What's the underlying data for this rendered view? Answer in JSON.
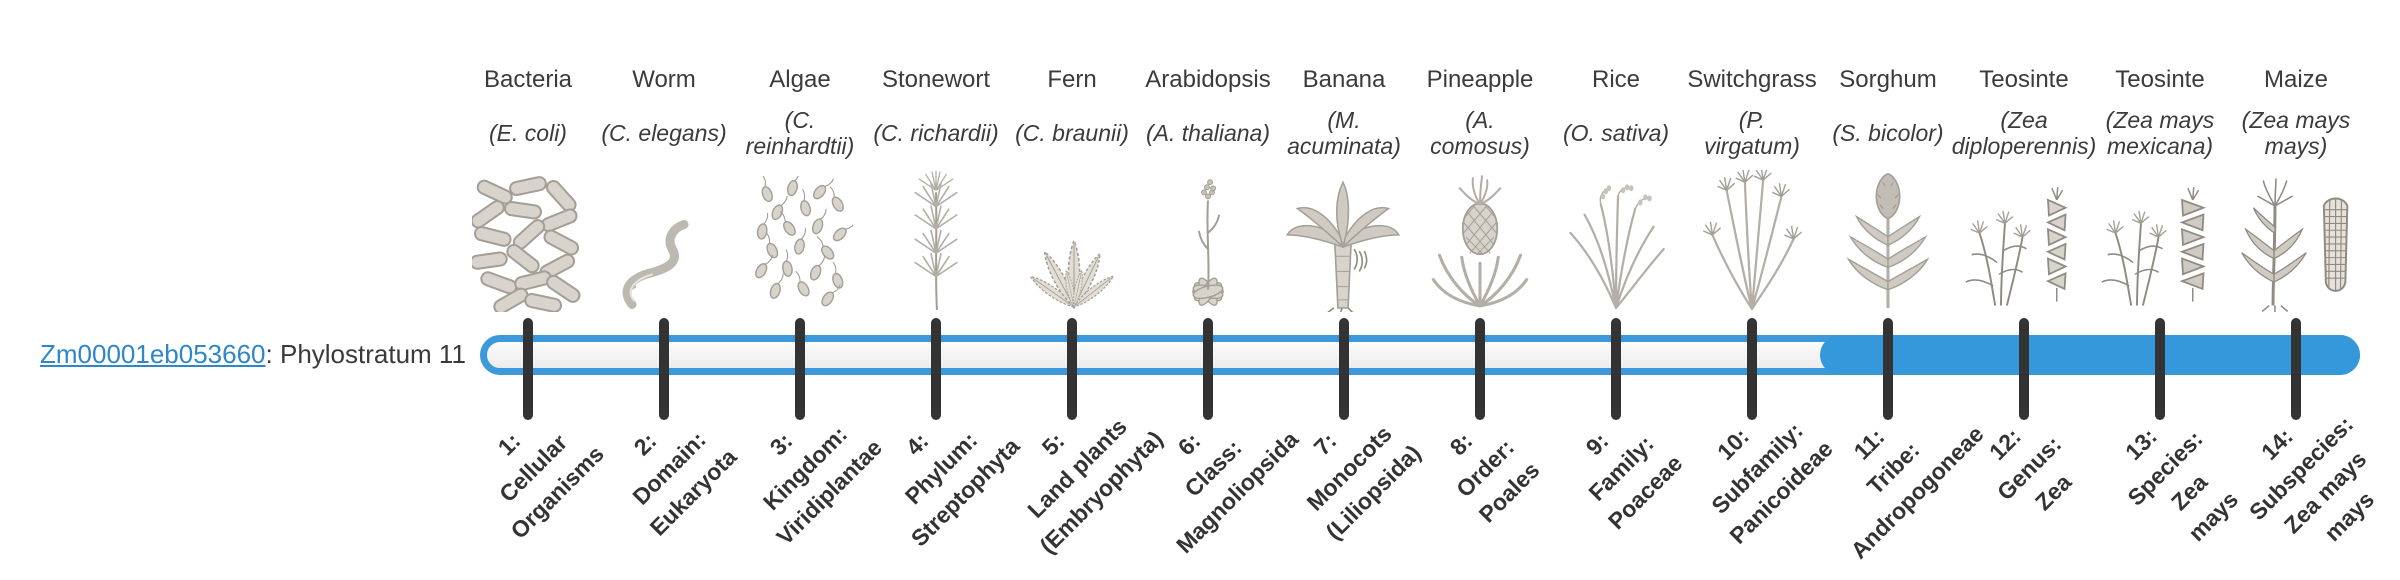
{
  "gene": {
    "id": "Zm00001eb053660",
    "label_suffix": ": Phylostratum 11",
    "phylostratum": 11
  },
  "timeline": {
    "fill_color": "#3498db",
    "track_border_color": "#3d99da",
    "tick_color": "#333333",
    "filled_from_stratum": 11,
    "total_strata": 14
  },
  "strata": [
    {
      "index": 1,
      "organism": "Bacteria",
      "species": "(E. coli)",
      "icon": "bacteria-icon",
      "stratum_label": "1:\nCellular\nOrganisms"
    },
    {
      "index": 2,
      "organism": "Worm",
      "species": "(C. elegans)",
      "icon": "worm-icon",
      "stratum_label": "2:\nDomain:\nEukaryota"
    },
    {
      "index": 3,
      "organism": "Algae",
      "species": "(C.\nreinhardtii)",
      "icon": "algae-icon",
      "stratum_label": "3:\nKingdom:\nViridiplantae"
    },
    {
      "index": 4,
      "organism": "Stonewort",
      "species": "(C. richardii)",
      "icon": "stonewort-icon",
      "stratum_label": "4:\nPhylum:\nStreptophyta"
    },
    {
      "index": 5,
      "organism": "Fern",
      "species": "(C. braunii)",
      "icon": "fern-icon",
      "stratum_label": "5:\nLand plants\n(Embryophyta)"
    },
    {
      "index": 6,
      "organism": "Arabidopsis",
      "species": "(A. thaliana)",
      "icon": "arabidopsis-icon",
      "stratum_label": "6:\nClass:\nMagnoliopsida"
    },
    {
      "index": 7,
      "organism": "Banana",
      "species": "(M.\nacuminata)",
      "icon": "banana-icon",
      "stratum_label": "7:\nMonocots\n(Liliopsida)"
    },
    {
      "index": 8,
      "organism": "Pineapple",
      "species": "(A.\ncomosus)",
      "icon": "pineapple-icon",
      "stratum_label": "8:\nOrder:\nPoales"
    },
    {
      "index": 9,
      "organism": "Rice",
      "species": "(O. sativa)",
      "icon": "rice-icon",
      "stratum_label": "9:\nFamily:\nPoaceae"
    },
    {
      "index": 10,
      "organism": "Switchgrass",
      "species": "(P.\nvirgatum)",
      "icon": "switchgrass-icon",
      "stratum_label": "10:\nSubfamily:\nPanicoideae"
    },
    {
      "index": 11,
      "organism": "Sorghum",
      "species": "(S. bicolor)",
      "icon": "sorghum-icon",
      "stratum_label": "11:\nTribe:\nAndropogoneae"
    },
    {
      "index": 12,
      "organism": "Teosinte",
      "species": "(Zea\ndiploperennis)",
      "icon": "teosinte-diploperennis-icon",
      "stratum_label": "12:\nGenus:\nZea"
    },
    {
      "index": 13,
      "organism": "Teosinte",
      "species": "(Zea mays\nmexicana)",
      "icon": "teosinte-mexicana-icon",
      "stratum_label": "13:\nSpecies:\nZea\nmays"
    },
    {
      "index": 14,
      "organism": "Maize",
      "species": "(Zea mays\nmays)",
      "icon": "maize-icon",
      "stratum_label": "14:\nSubspecies:\nZea mays\nmays"
    }
  ]
}
